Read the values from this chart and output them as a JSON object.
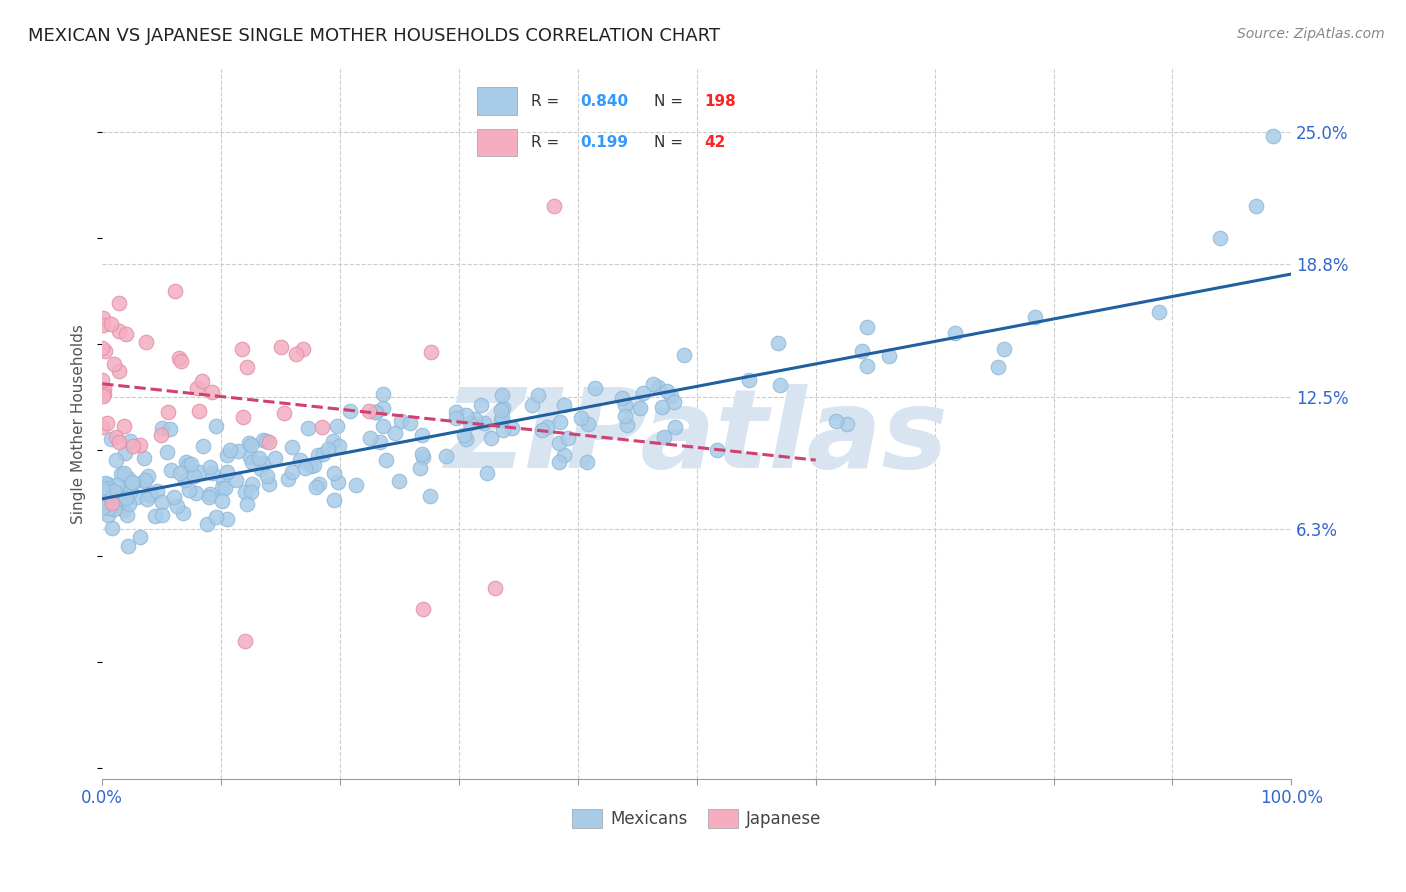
{
  "title": "MEXICAN VS JAPANESE SINGLE MOTHER HOUSEHOLDS CORRELATION CHART",
  "source": "Source: ZipAtlas.com",
  "ylabel": "Single Mother Households",
  "watermark": "ZIPatlas",
  "xlim": [
    0.0,
    1.0
  ],
  "ylim": [
    -0.055,
    0.28
  ],
  "ytick_labels_right": [
    "6.3%",
    "12.5%",
    "18.8%",
    "25.0%"
  ],
  "ytick_vals_right": [
    0.063,
    0.125,
    0.188,
    0.25
  ],
  "mexicans_R": 0.84,
  "mexicans_N": 198,
  "japanese_R": 0.199,
  "japanese_N": 42,
  "blue_scatter_color": "#a8cce8",
  "pink_scatter_color": "#f4aec0",
  "blue_line_color": "#2060a0",
  "pink_line_color": "#d04070",
  "right_tick_color": "#3366cc",
  "legend_R_color": "#3399ff",
  "legend_N_color": "#ff2222",
  "title_fontsize": 13,
  "source_fontsize": 10,
  "watermark_color": "#d8e4f0",
  "background_color": "#ffffff",
  "grid_color": "#cccccc",
  "grid_style": "--"
}
